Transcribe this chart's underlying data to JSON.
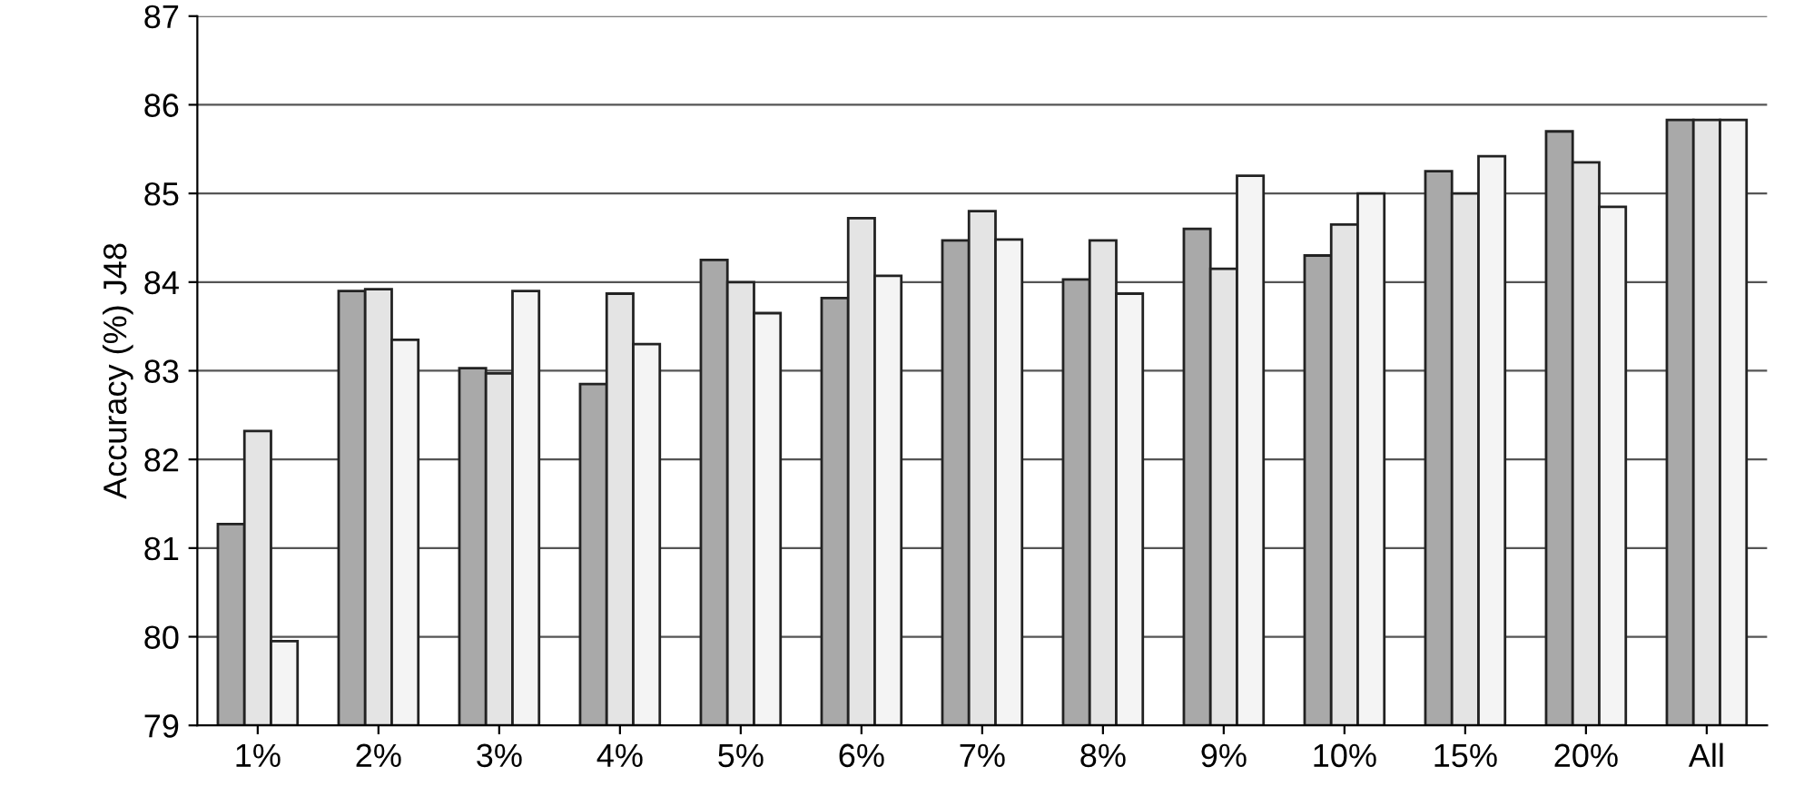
{
  "chart_data": {
    "type": "bar",
    "ylabel": "Accuracy (%) J48",
    "categories": [
      "1%",
      "2%",
      "3%",
      "4%",
      "5%",
      "6%",
      "7%",
      "8%",
      "9%",
      "10%",
      "15%",
      "20%",
      "All"
    ],
    "series": [
      {
        "color": "#a9a9a9",
        "values": [
          81.27,
          83.9,
          83.03,
          82.85,
          84.25,
          83.82,
          84.47,
          84.03,
          84.6,
          84.3,
          85.25,
          85.7,
          85.83
        ]
      },
      {
        "color": "#e4e4e4",
        "values": [
          82.32,
          83.92,
          82.97,
          83.87,
          84.0,
          84.72,
          84.8,
          84.47,
          84.15,
          84.65,
          85.0,
          85.35,
          85.83
        ]
      },
      {
        "color": "#f4f4f4",
        "values": [
          79.95,
          83.35,
          83.9,
          83.3,
          83.65,
          84.07,
          84.48,
          83.87,
          85.2,
          85.0,
          85.42,
          84.85,
          85.83
        ]
      }
    ],
    "ylim": [
      79,
      87
    ],
    "yticks": [
      79,
      80,
      81,
      82,
      83,
      84,
      85,
      86,
      87
    ],
    "grid": "y"
  }
}
